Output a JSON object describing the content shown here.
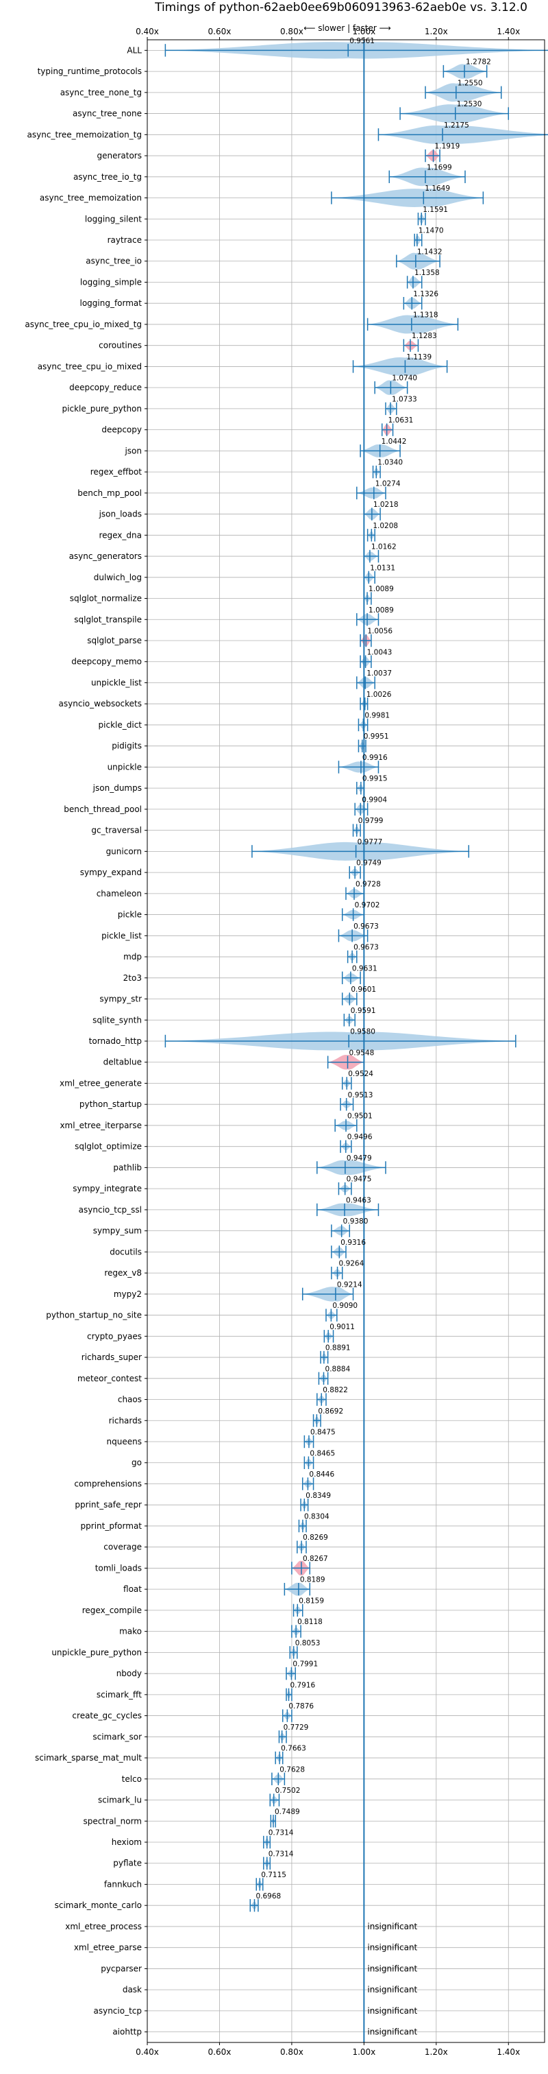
{
  "chart_data": {
    "type": "violin",
    "title": "Timings of python-62aeb0ee69b060913963-62aeb0e vs. 3.12.0",
    "direction_label": "⟵ slower | faster ⟶",
    "xlim": [
      0.4,
      1.5
    ],
    "xticks": [
      0.4,
      0.6,
      0.8,
      1.0,
      1.2,
      1.4
    ],
    "xtick_labels": [
      "0.40x",
      "0.60x",
      "0.80x",
      "1.00x",
      "1.20x",
      "1.40x"
    ],
    "reference_line": 1.0,
    "colors": {
      "violin": "#a9cce6",
      "violin_highlight": "#f2a0b0",
      "whisker": "#1f77b4",
      "reference": "#1f77b4",
      "grid": "#b0b0b0",
      "median": "#d62728"
    },
    "benchmarks": [
      {
        "name": "ALL",
        "ratio": 0.9561,
        "min": 0.45,
        "max": 1.52,
        "width": 0.9
      },
      {
        "name": "typing_runtime_protocols",
        "ratio": 1.2782,
        "min": 1.22,
        "max": 1.34,
        "width": 0.8
      },
      {
        "name": "async_tree_none_tg",
        "ratio": 1.255,
        "min": 1.17,
        "max": 1.38,
        "width": 1.0
      },
      {
        "name": "async_tree_none",
        "ratio": 1.253,
        "min": 1.1,
        "max": 1.4,
        "width": 1.0
      },
      {
        "name": "async_tree_memoization_tg",
        "ratio": 1.2175,
        "min": 1.04,
        "max": 1.54,
        "width": 1.0
      },
      {
        "name": "generators",
        "ratio": 1.1919,
        "min": 1.17,
        "max": 1.21,
        "width": 0.6,
        "highlight": true
      },
      {
        "name": "async_tree_io_tg",
        "ratio": 1.1699,
        "min": 1.07,
        "max": 1.28,
        "width": 1.0
      },
      {
        "name": "async_tree_memoization",
        "ratio": 1.1649,
        "min": 0.91,
        "max": 1.33,
        "width": 1.0
      },
      {
        "name": "logging_silent",
        "ratio": 1.1591,
        "min": 1.15,
        "max": 1.17,
        "width": 0.5
      },
      {
        "name": "raytrace",
        "ratio": 1.147,
        "min": 1.14,
        "max": 1.16,
        "width": 0.5
      },
      {
        "name": "async_tree_io",
        "ratio": 1.1432,
        "min": 1.09,
        "max": 1.21,
        "width": 0.9
      },
      {
        "name": "logging_simple",
        "ratio": 1.1358,
        "min": 1.12,
        "max": 1.16,
        "width": 0.6
      },
      {
        "name": "logging_format",
        "ratio": 1.1326,
        "min": 1.11,
        "max": 1.16,
        "width": 0.6
      },
      {
        "name": "async_tree_cpu_io_mixed_tg",
        "ratio": 1.1318,
        "min": 1.01,
        "max": 1.26,
        "width": 1.0
      },
      {
        "name": "coroutines",
        "ratio": 1.1283,
        "min": 1.11,
        "max": 1.15,
        "width": 0.5,
        "highlight": true
      },
      {
        "name": "async_tree_cpu_io_mixed",
        "ratio": 1.1139,
        "min": 0.97,
        "max": 1.23,
        "width": 1.0
      },
      {
        "name": "deepcopy_reduce",
        "ratio": 1.074,
        "min": 1.03,
        "max": 1.12,
        "width": 0.8
      },
      {
        "name": "pickle_pure_python",
        "ratio": 1.0733,
        "min": 1.06,
        "max": 1.09,
        "width": 0.5
      },
      {
        "name": "deepcopy",
        "ratio": 1.0631,
        "min": 1.05,
        "max": 1.08,
        "width": 0.6,
        "highlight": true
      },
      {
        "name": "json",
        "ratio": 1.0442,
        "min": 0.99,
        "max": 1.1,
        "width": 0.7
      },
      {
        "name": "regex_effbot",
        "ratio": 1.034,
        "min": 1.025,
        "max": 1.045,
        "width": 0.4
      },
      {
        "name": "bench_mp_pool",
        "ratio": 1.0274,
        "min": 0.98,
        "max": 1.06,
        "width": 0.6
      },
      {
        "name": "json_loads",
        "ratio": 1.0218,
        "min": 1.0,
        "max": 1.045,
        "width": 0.6
      },
      {
        "name": "regex_dna",
        "ratio": 1.0208,
        "min": 1.01,
        "max": 1.03,
        "width": 0.4
      },
      {
        "name": "async_generators",
        "ratio": 1.0162,
        "min": 1.0,
        "max": 1.04,
        "width": 0.5
      },
      {
        "name": "dulwich_log",
        "ratio": 1.0131,
        "min": 1.0,
        "max": 1.03,
        "width": 0.5
      },
      {
        "name": "sqlglot_normalize",
        "ratio": 1.0089,
        "min": 1.0,
        "max": 1.02,
        "width": 0.4
      },
      {
        "name": "sqlglot_transpile",
        "ratio": 1.0089,
        "min": 0.98,
        "max": 1.04,
        "width": 0.6
      },
      {
        "name": "sqlglot_parse",
        "ratio": 1.0056,
        "min": 0.99,
        "max": 1.02,
        "width": 0.6,
        "highlight": true
      },
      {
        "name": "deepcopy_memo",
        "ratio": 1.0043,
        "min": 0.99,
        "max": 1.02,
        "width": 0.5
      },
      {
        "name": "unpickle_list",
        "ratio": 1.0037,
        "min": 0.98,
        "max": 1.03,
        "width": 0.6
      },
      {
        "name": "asyncio_websockets",
        "ratio": 1.0026,
        "min": 0.99,
        "max": 1.01,
        "width": 0.4
      },
      {
        "name": "pickle_dict",
        "ratio": 0.9981,
        "min": 0.985,
        "max": 1.01,
        "width": 0.4
      },
      {
        "name": "pidigits",
        "ratio": 0.9951,
        "min": 0.985,
        "max": 1.005,
        "width": 0.4
      },
      {
        "name": "unpickle",
        "ratio": 0.9916,
        "min": 0.93,
        "max": 1.04,
        "width": 0.6
      },
      {
        "name": "json_dumps",
        "ratio": 0.9915,
        "min": 0.98,
        "max": 1.0,
        "width": 0.4
      },
      {
        "name": "bench_thread_pool",
        "ratio": 0.9904,
        "min": 0.975,
        "max": 1.01,
        "width": 0.5
      },
      {
        "name": "gc_traversal",
        "ratio": 0.9799,
        "min": 0.97,
        "max": 0.99,
        "width": 0.4
      },
      {
        "name": "gunicorn",
        "ratio": 0.9777,
        "min": 0.69,
        "max": 1.29,
        "width": 1.0
      },
      {
        "name": "sympy_expand",
        "ratio": 0.9749,
        "min": 0.96,
        "max": 0.99,
        "width": 0.4
      },
      {
        "name": "chameleon",
        "ratio": 0.9728,
        "min": 0.95,
        "max": 1.0,
        "width": 0.5
      },
      {
        "name": "pickle",
        "ratio": 0.9702,
        "min": 0.94,
        "max": 1.0,
        "width": 0.5
      },
      {
        "name": "pickle_list",
        "ratio": 0.9673,
        "min": 0.93,
        "max": 1.01,
        "width": 0.6
      },
      {
        "name": "mdp",
        "ratio": 0.9673,
        "min": 0.955,
        "max": 0.98,
        "width": 0.4
      },
      {
        "name": "2to3",
        "ratio": 0.9631,
        "min": 0.94,
        "max": 0.99,
        "width": 0.5
      },
      {
        "name": "sympy_str",
        "ratio": 0.9601,
        "min": 0.94,
        "max": 0.98,
        "width": 0.5
      },
      {
        "name": "sqlite_synth",
        "ratio": 0.9591,
        "min": 0.945,
        "max": 0.975,
        "width": 0.4
      },
      {
        "name": "tornado_http",
        "ratio": 0.958,
        "min": 0.45,
        "max": 1.42,
        "width": 1.0
      },
      {
        "name": "deltablue",
        "ratio": 0.9548,
        "min": 0.9,
        "max": 1.0,
        "width": 0.8,
        "highlight": true
      },
      {
        "name": "xml_etree_generate",
        "ratio": 0.9524,
        "min": 0.94,
        "max": 0.965,
        "width": 0.4
      },
      {
        "name": "python_startup",
        "ratio": 0.9513,
        "min": 0.935,
        "max": 0.97,
        "width": 0.4
      },
      {
        "name": "xml_etree_iterparse",
        "ratio": 0.9501,
        "min": 0.92,
        "max": 0.98,
        "width": 0.5
      },
      {
        "name": "sqlglot_optimize",
        "ratio": 0.9496,
        "min": 0.935,
        "max": 0.965,
        "width": 0.4
      },
      {
        "name": "pathlib",
        "ratio": 0.9479,
        "min": 0.87,
        "max": 1.06,
        "width": 0.8
      },
      {
        "name": "sympy_integrate",
        "ratio": 0.9475,
        "min": 0.93,
        "max": 0.965,
        "width": 0.4
      },
      {
        "name": "asyncio_tcp_ssl",
        "ratio": 0.9463,
        "min": 0.87,
        "max": 1.04,
        "width": 0.7
      },
      {
        "name": "sympy_sum",
        "ratio": 0.938,
        "min": 0.91,
        "max": 0.96,
        "width": 0.5
      },
      {
        "name": "docutils",
        "ratio": 0.9316,
        "min": 0.91,
        "max": 0.95,
        "width": 0.5
      },
      {
        "name": "regex_v8",
        "ratio": 0.9264,
        "min": 0.91,
        "max": 0.94,
        "width": 0.4
      },
      {
        "name": "mypy2",
        "ratio": 0.9214,
        "min": 0.83,
        "max": 0.97,
        "width": 0.8
      },
      {
        "name": "python_startup_no_site",
        "ratio": 0.909,
        "min": 0.895,
        "max": 0.925,
        "width": 0.4
      },
      {
        "name": "crypto_pyaes",
        "ratio": 0.9011,
        "min": 0.89,
        "max": 0.915,
        "width": 0.4
      },
      {
        "name": "richards_super",
        "ratio": 0.8891,
        "min": 0.88,
        "max": 0.9,
        "width": 0.4
      },
      {
        "name": "meteor_contest",
        "ratio": 0.8884,
        "min": 0.875,
        "max": 0.9,
        "width": 0.4
      },
      {
        "name": "chaos",
        "ratio": 0.8822,
        "min": 0.87,
        "max": 0.895,
        "width": 0.4
      },
      {
        "name": "richards",
        "ratio": 0.8692,
        "min": 0.86,
        "max": 0.88,
        "width": 0.4
      },
      {
        "name": "nqueens",
        "ratio": 0.8475,
        "min": 0.835,
        "max": 0.86,
        "width": 0.4
      },
      {
        "name": "go",
        "ratio": 0.8465,
        "min": 0.835,
        "max": 0.86,
        "width": 0.4
      },
      {
        "name": "comprehensions",
        "ratio": 0.8446,
        "min": 0.83,
        "max": 0.86,
        "width": 0.4
      },
      {
        "name": "pprint_safe_repr",
        "ratio": 0.8349,
        "min": 0.825,
        "max": 0.845,
        "width": 0.4
      },
      {
        "name": "pprint_pformat",
        "ratio": 0.8304,
        "min": 0.82,
        "max": 0.84,
        "width": 0.4
      },
      {
        "name": "coverage",
        "ratio": 0.8269,
        "min": 0.815,
        "max": 0.84,
        "width": 0.4
      },
      {
        "name": "tomli_loads",
        "ratio": 0.8267,
        "min": 0.8,
        "max": 0.85,
        "width": 0.8,
        "highlight": true
      },
      {
        "name": "float",
        "ratio": 0.8189,
        "min": 0.78,
        "max": 0.85,
        "width": 0.7
      },
      {
        "name": "regex_compile",
        "ratio": 0.8159,
        "min": 0.805,
        "max": 0.83,
        "width": 0.4
      },
      {
        "name": "mako",
        "ratio": 0.8118,
        "min": 0.8,
        "max": 0.825,
        "width": 0.4
      },
      {
        "name": "unpickle_pure_python",
        "ratio": 0.8053,
        "min": 0.795,
        "max": 0.815,
        "width": 0.4
      },
      {
        "name": "nbody",
        "ratio": 0.7991,
        "min": 0.785,
        "max": 0.81,
        "width": 0.4
      },
      {
        "name": "scimark_fft",
        "ratio": 0.7916,
        "min": 0.785,
        "max": 0.8,
        "width": 0.4
      },
      {
        "name": "create_gc_cycles",
        "ratio": 0.7876,
        "min": 0.775,
        "max": 0.8,
        "width": 0.4
      },
      {
        "name": "scimark_sor",
        "ratio": 0.7729,
        "min": 0.765,
        "max": 0.785,
        "width": 0.4
      },
      {
        "name": "scimark_sparse_mat_mult",
        "ratio": 0.7663,
        "min": 0.755,
        "max": 0.775,
        "width": 0.4
      },
      {
        "name": "telco",
        "ratio": 0.7628,
        "min": 0.745,
        "max": 0.78,
        "width": 0.5
      },
      {
        "name": "scimark_lu",
        "ratio": 0.7502,
        "min": 0.74,
        "max": 0.765,
        "width": 0.4
      },
      {
        "name": "spectral_norm",
        "ratio": 0.7489,
        "min": 0.742,
        "max": 0.755,
        "width": 0.3
      },
      {
        "name": "hexiom",
        "ratio": 0.7314,
        "min": 0.722,
        "max": 0.74,
        "width": 0.4
      },
      {
        "name": "pyflate",
        "ratio": 0.7314,
        "min": 0.722,
        "max": 0.74,
        "width": 0.4
      },
      {
        "name": "fannkuch",
        "ratio": 0.7115,
        "min": 0.702,
        "max": 0.72,
        "width": 0.4
      },
      {
        "name": "scimark_monte_carlo",
        "ratio": 0.6968,
        "min": 0.685,
        "max": 0.707,
        "width": 0.4
      },
      {
        "name": "xml_etree_process",
        "insignificant": true
      },
      {
        "name": "xml_etree_parse",
        "insignificant": true
      },
      {
        "name": "pycparser",
        "insignificant": true
      },
      {
        "name": "dask",
        "insignificant": true
      },
      {
        "name": "asyncio_tcp",
        "insignificant": true
      },
      {
        "name": "aiohttp",
        "insignificant": true
      }
    ],
    "insignificant_label": "insignificant",
    "grid": true
  }
}
